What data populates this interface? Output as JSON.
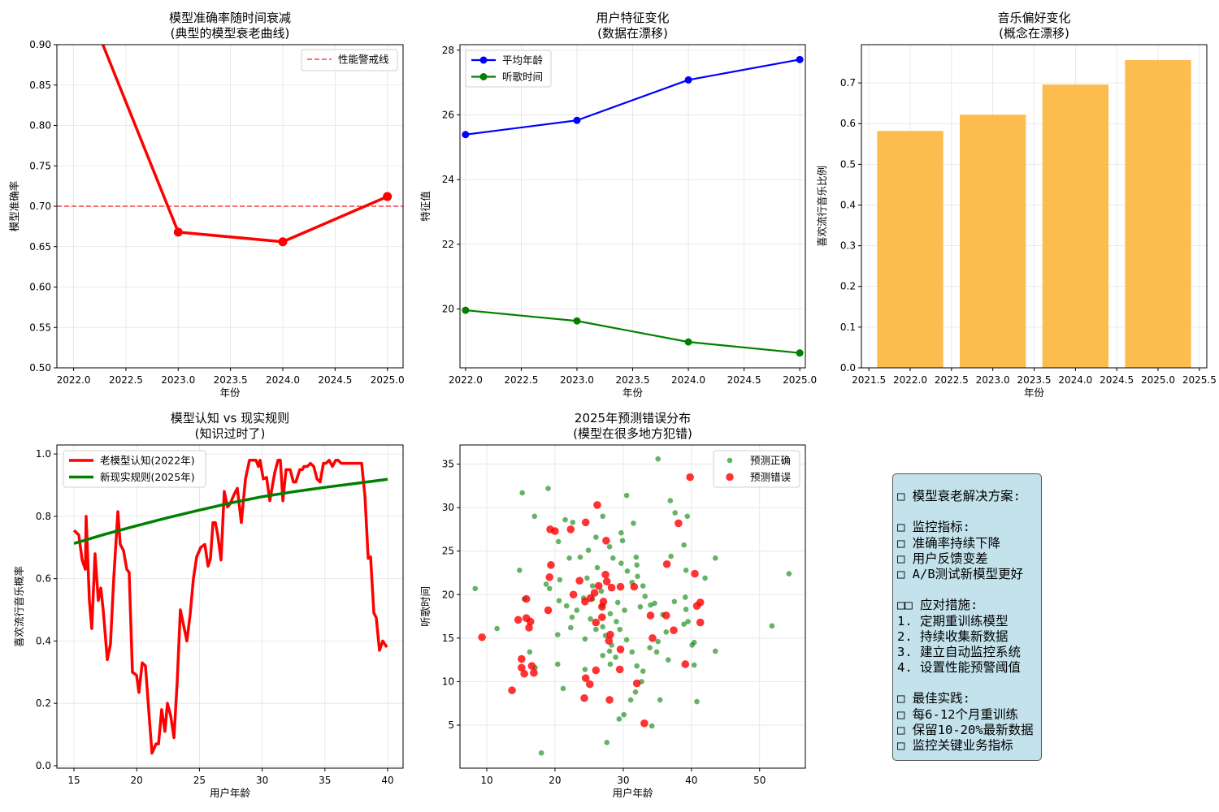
{
  "chart_data": [
    {
      "type": "line",
      "title": "模型准确率随时间衰减",
      "subtitle": "(典型的模型衰老曲线)",
      "xlabel": "年份",
      "ylabel": "模型准确率",
      "xlim": [
        2021.84,
        2025.15
      ],
      "ylim": [
        0.5,
        0.9
      ],
      "grid": true,
      "legend": "top-right",
      "xticks": [
        2022.0,
        2022.5,
        2023.0,
        2023.5,
        2024.0,
        2024.5,
        2025.0
      ],
      "xtick_labels": [
        "2022.0",
        "2022.5",
        "2023.0",
        "2023.5",
        "2024.0",
        "2024.5",
        "2025.0"
      ],
      "yticks": [
        0.5,
        0.55,
        0.6,
        0.65,
        0.7,
        0.75,
        0.8,
        0.85,
        0.9
      ],
      "ytick_labels": [
        "0.50",
        "0.55",
        "0.60",
        "0.65",
        "0.70",
        "0.75",
        "0.80",
        "0.85",
        "0.90"
      ],
      "series": [
        {
          "x": [
            2022,
            2023,
            2024,
            2025
          ],
          "y": [
            0.99,
            0.668,
            0.656,
            0.712
          ],
          "color": "#ff0000",
          "marker": true
        }
      ],
      "hlines": [
        {
          "name": "性能警戒线",
          "y": 0.7,
          "color": "#ff0000",
          "style": "dashed"
        }
      ]
    },
    {
      "type": "line",
      "title": "用户特征变化",
      "subtitle": "(数据在漂移)",
      "xlabel": "年份",
      "ylabel": "特征值",
      "xlim": [
        2021.95,
        2025.05
      ],
      "ylim": [
        18.18,
        28.17
      ],
      "grid": true,
      "legend": "top-left",
      "xticks": [
        2022.0,
        2022.5,
        2023.0,
        2023.5,
        2024.0,
        2024.5,
        2025.0
      ],
      "xtick_labels": [
        "2022.0",
        "2022.5",
        "2023.0",
        "2023.5",
        "2024.0",
        "2024.5",
        "2025.0"
      ],
      "yticks": [
        20,
        22,
        24,
        26,
        28
      ],
      "ytick_labels": [
        "20",
        "22",
        "24",
        "26",
        "28"
      ],
      "series": [
        {
          "name": "平均年龄",
          "x": [
            2022,
            2023,
            2024,
            2025
          ],
          "y": [
            25.39,
            25.83,
            27.08,
            27.71
          ],
          "color": "#0000ff",
          "marker": true
        },
        {
          "name": "听歌时间",
          "x": [
            2022,
            2023,
            2024,
            2025
          ],
          "y": [
            19.96,
            19.63,
            18.98,
            18.64
          ],
          "color": "#008000",
          "marker": true
        }
      ]
    },
    {
      "type": "bar",
      "title": "音乐偏好变化",
      "subtitle": "(概念在漂移)",
      "xlabel": "年份",
      "ylabel": "喜欢流行音乐比例",
      "xlim": [
        2021.41,
        2025.59
      ],
      "ylim": [
        0,
        0.794
      ],
      "grid": true,
      "xticks": [
        2021.5,
        2022.0,
        2022.5,
        2023.0,
        2023.5,
        2024.0,
        2024.5,
        2025.0,
        2025.5
      ],
      "xtick_labels": [
        "2021.5",
        "2022.0",
        "2022.5",
        "2023.0",
        "2023.5",
        "2024.0",
        "2024.5",
        "2025.0",
        "2025.5"
      ],
      "yticks": [
        0,
        0.1,
        0.2,
        0.3,
        0.4,
        0.5,
        0.6,
        0.7
      ],
      "ytick_labels": [
        "0.0",
        "0.1",
        "0.2",
        "0.3",
        "0.4",
        "0.5",
        "0.6",
        "0.7"
      ],
      "categories": [
        2022,
        2023,
        2024,
        2025
      ],
      "values": [
        0.582,
        0.622,
        0.696,
        0.756
      ],
      "bar_width": 0.8,
      "color": "#fdbd4e"
    },
    {
      "type": "line",
      "title": "模型认知 vs 现实规则",
      "subtitle": "(知识过时了)",
      "xlabel": "用户年龄",
      "ylabel": "喜欢流行音乐概率",
      "xlim": [
        13.64,
        41.23
      ],
      "ylim": [
        -0.008,
        1.029
      ],
      "grid": true,
      "legend": "top-left",
      "xticks": [
        15,
        20,
        25,
        30,
        35,
        40
      ],
      "xtick_labels": [
        "15",
        "20",
        "25",
        "30",
        "35",
        "40"
      ],
      "yticks": [
        0,
        0.2,
        0.4,
        0.6,
        0.8,
        1.0
      ],
      "ytick_labels": [
        "0.0",
        "0.2",
        "0.4",
        "0.6",
        "0.8",
        "1.0"
      ],
      "series": [
        {
          "name": "老模型认知(2022年)",
          "color": "#ff0000",
          "marker": false,
          "x": [
            15.0,
            15.39,
            15.65,
            15.91,
            15.97,
            16.23,
            16.42,
            16.68,
            16.94,
            17.14,
            17.33,
            17.66,
            17.91,
            18.17,
            18.5,
            18.69,
            18.95,
            19.21,
            19.4,
            19.66,
            19.99,
            20.18,
            20.44,
            20.7,
            21.02,
            21.22,
            21.54,
            21.74,
            21.99,
            22.25,
            22.45,
            22.71,
            22.97,
            23.23,
            23.48,
            23.74,
            24.0,
            24.26,
            24.52,
            24.78,
            25.1,
            25.43,
            25.69,
            25.88,
            26.08,
            26.27,
            26.46,
            26.72,
            26.98,
            27.24,
            27.44,
            27.76,
            28.02,
            28.34,
            28.67,
            28.99,
            29.51,
            29.7,
            29.83,
            30.09,
            30.35,
            30.61,
            31.0,
            31.26,
            31.45,
            31.65,
            31.9,
            32.23,
            32.49,
            32.68,
            33.0,
            33.2,
            33.33,
            33.59,
            33.85,
            34.11,
            34.37,
            34.62,
            34.88,
            35.08,
            35.34,
            35.6,
            35.86,
            36.05,
            36.31,
            37.93,
            38.19,
            38.45,
            38.64,
            38.9,
            39.09,
            39.35,
            39.61,
            39.94
          ],
          "y": [
            0.755,
            0.74,
            0.66,
            0.63,
            0.8,
            0.53,
            0.44,
            0.68,
            0.53,
            0.57,
            0.5,
            0.34,
            0.39,
            0.6,
            0.815,
            0.71,
            0.69,
            0.63,
            0.62,
            0.3,
            0.29,
            0.235,
            0.33,
            0.32,
            0.145,
            0.04,
            0.07,
            0.07,
            0.18,
            0.11,
            0.2,
            0.16,
            0.09,
            0.27,
            0.5,
            0.45,
            0.4,
            0.485,
            0.6,
            0.67,
            0.7,
            0.71,
            0.64,
            0.665,
            0.78,
            0.78,
            0.74,
            0.66,
            0.88,
            0.83,
            0.84,
            0.87,
            0.89,
            0.78,
            0.92,
            0.98,
            0.98,
            0.96,
            0.98,
            0.92,
            0.925,
            0.85,
            0.94,
            0.98,
            0.98,
            0.85,
            0.95,
            0.95,
            0.91,
            0.91,
            0.95,
            0.95,
            0.96,
            0.96,
            0.97,
            0.96,
            0.92,
            0.91,
            0.97,
            0.97,
            0.98,
            0.96,
            0.98,
            0.98,
            0.97,
            0.97,
            0.865,
            0.665,
            0.67,
            0.49,
            0.475,
            0.37,
            0.4,
            0.38
          ]
        },
        {
          "name": "新现实规则(2025年)",
          "color": "#008000",
          "marker": false,
          "x": [
            15,
            17.5,
            20,
            22.5,
            25,
            27.5,
            30,
            32.5,
            35,
            37.5,
            40
          ],
          "y": [
            0.713,
            0.743,
            0.77,
            0.796,
            0.82,
            0.843,
            0.863,
            0.879,
            0.893,
            0.906,
            0.919
          ]
        }
      ]
    },
    {
      "type": "scatter",
      "title": "2025年预测错误分布",
      "subtitle": "(模型在很多地方犯错)",
      "xlabel": "用户年龄",
      "ylabel": "听歌时间",
      "xlim": [
        6.07,
        56.7
      ],
      "ylim": [
        0.05,
        37.2
      ],
      "grid": true,
      "legend": "top-right",
      "xticks": [
        10,
        20,
        30,
        40,
        50
      ],
      "xtick_labels": [
        "10",
        "20",
        "30",
        "40",
        "50"
      ],
      "yticks": [
        5,
        10,
        15,
        20,
        25,
        30,
        35
      ],
      "ytick_labels": [
        "5",
        "10",
        "15",
        "20",
        "25",
        "30",
        "35"
      ],
      "series": [
        {
          "name": "预测正确",
          "color": "#008000",
          "alpha": 0.6,
          "x": [
            8.3,
            11.5,
            15.2,
            19.0,
            17.0,
            14.8,
            15.5,
            16.3,
            17.1,
            18.0,
            20.5,
            21.5,
            22.6,
            22.1,
            20.7,
            18.7,
            19.2,
            20.6,
            21.7,
            23.2,
            22.5,
            22.3,
            20.4,
            24.4,
            20.4,
            21.2,
            24.4,
            23.7,
            24.9,
            26.0,
            27.0,
            28.0,
            29.7,
            30.5,
            31.5,
            29.9,
            28.5,
            29.7,
            30.6,
            31.9,
            32.0,
            32.1,
            31.3,
            32.9,
            33.2,
            34.0,
            32.5,
            30.2,
            29.2,
            26.8,
            25.5,
            25.2,
            26.0,
            27.4,
            28.3,
            28.0,
            27.0,
            28.1,
            28.9,
            29.5,
            30.5,
            31.3,
            32.0,
            32.9,
            32.7,
            31.8,
            31.1,
            30.1,
            29.4,
            27.6,
            34.2,
            35.4,
            36.6,
            34.9,
            35.1,
            33.9,
            36.3,
            35.8,
            34.6,
            37.5,
            39.1,
            39.2,
            39.5,
            38.9,
            40.1,
            40.4,
            40.8,
            40.4,
            43.5,
            43.5,
            39.2,
            38.9,
            37.0,
            37.6,
            39.4,
            36.9,
            35.1,
            51.8,
            54.3,
            42.0,
            26.9,
            28.1,
            29.0,
            25.5,
            26.2,
            24.7,
            24.2,
            27.0
          ],
          "y": [
            20.7,
            16.1,
            31.7,
            32.2,
            29.0,
            22.8,
            19.5,
            13.4,
            11.6,
            1.8,
            26.1,
            28.6,
            28.3,
            24.2,
            21.7,
            21.2,
            20.7,
            19.3,
            18.7,
            18.2,
            17.4,
            16.2,
            15.4,
            14.9,
            12.0,
            9.2,
            11.4,
            24.3,
            25.1,
            26.6,
            29.0,
            25.5,
            27.1,
            31.4,
            28.2,
            26.2,
            24.2,
            23.6,
            22.7,
            24.3,
            23.4,
            22.1,
            21.4,
            21.0,
            19.8,
            18.8,
            18.6,
            18.2,
            19.1,
            20.4,
            19.5,
            17.2,
            16.0,
            15.3,
            14.2,
            13.5,
            13.0,
            12.0,
            12.8,
            16.0,
            14.8,
            13.4,
            11.8,
            11.2,
            10.0,
            8.8,
            7.9,
            6.2,
            5.7,
            3.0,
            4.9,
            7.9,
            12.5,
            13.4,
            14.6,
            13.9,
            15.7,
            17.7,
            19.0,
            19.2,
            19.7,
            18.3,
            16.9,
            16.6,
            14.2,
            11.9,
            7.7,
            14.5,
            13.5,
            24.2,
            22.8,
            25.7,
            24.4,
            29.4,
            29.0,
            30.8,
            35.6,
            16.4,
            22.4,
            21.9,
            18.7,
            17.8,
            16.9,
            21.0,
            23.1,
            21.9,
            19.6,
            16.3
          ]
        },
        {
          "name": "预测错误",
          "color": "#ff0000",
          "alpha": 0.8,
          "x": [
            9.3,
            13.7,
            14.6,
            15.1,
            15.1,
            15.5,
            15.8,
            16.2,
            16.4,
            16.6,
            16.9,
            15.8,
            19.0,
            19.2,
            19.4,
            19.3,
            20.0,
            22.3,
            24.5,
            26.2,
            27.5,
            27.4,
            27.6,
            23.6,
            22.7,
            24.4,
            25.2,
            25.8,
            26.4,
            26.9,
            27.1,
            26.9,
            26.0,
            28.3,
            29.6,
            28.1,
            27.9,
            29.6,
            24.5,
            25.1,
            26.0,
            24.3,
            28.0,
            29.5,
            31.6,
            32.0,
            33.1,
            34.0,
            34.3,
            36.3,
            37.4,
            36.4,
            38.1,
            39.8,
            40.5,
            39.1,
            40.8,
            41.3,
            41.3
          ],
          "y": [
            15.1,
            9.0,
            17.1,
            12.6,
            11.6,
            10.9,
            17.3,
            16.2,
            16.9,
            11.8,
            11.0,
            19.5,
            18.2,
            22.0,
            23.4,
            27.5,
            27.3,
            27.5,
            28.3,
            30.3,
            26.2,
            22.3,
            21.5,
            21.6,
            20.0,
            19.2,
            19.6,
            20.2,
            21.0,
            18.6,
            19.2,
            17.4,
            16.8,
            20.8,
            20.9,
            15.4,
            14.7,
            13.7,
            10.4,
            9.7,
            11.3,
            8.1,
            7.9,
            11.4,
            20.9,
            9.8,
            5.2,
            17.6,
            15.0,
            17.6,
            15.9,
            23.5,
            28.2,
            33.5,
            22.4,
            12.0,
            18.7,
            19.1,
            16.8
          ]
        }
      ]
    }
  ],
  "info_box": {
    "lines": [
      "□ 模型衰老解决方案:",
      "",
      "□ 监控指标:",
      "□ 准确率持续下降",
      "□ 用户反馈变差",
      "□ A/B测试新模型更好",
      "",
      "□□ 应对措施:",
      "1. 定期重训练模型",
      "2. 持续收集新数据",
      "3. 建立自动监控系统",
      "4. 设置性能预警阈值",
      "",
      "□ 最佳实践:",
      "□ 每6-12个月重训练",
      "□ 保留10-20%最新数据",
      "□ 监控关键业务指标"
    ],
    "background": "#c3e2ec"
  }
}
